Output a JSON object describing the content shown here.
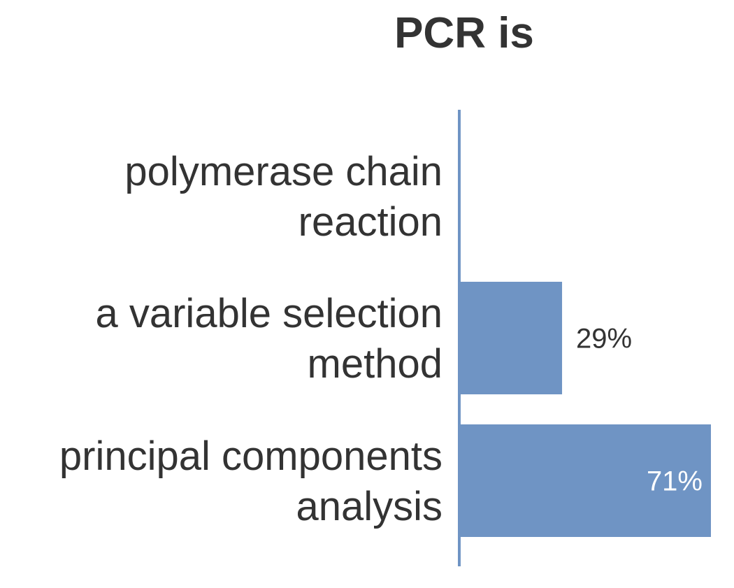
{
  "chart_data": {
    "type": "bar",
    "orientation": "horizontal",
    "title": "PCR is",
    "categories": [
      "polymerase chain reaction",
      "a variable selection method",
      "principal components analysis"
    ],
    "category_lines": [
      [
        "polymerase chain",
        "reaction"
      ],
      [
        "a variable selection",
        "method"
      ],
      [
        "principal components",
        "analysis"
      ]
    ],
    "values": [
      0,
      29,
      71
    ],
    "value_labels": [
      "",
      "29%",
      "71%"
    ],
    "xlim": [
      0,
      71
    ],
    "grid": false,
    "legend": "none",
    "colors": {
      "bar": "#6f94c4",
      "axis": "#6f94c4",
      "text": "#333333",
      "label_outside": "#333333",
      "label_inside": "#ffffff"
    }
  }
}
